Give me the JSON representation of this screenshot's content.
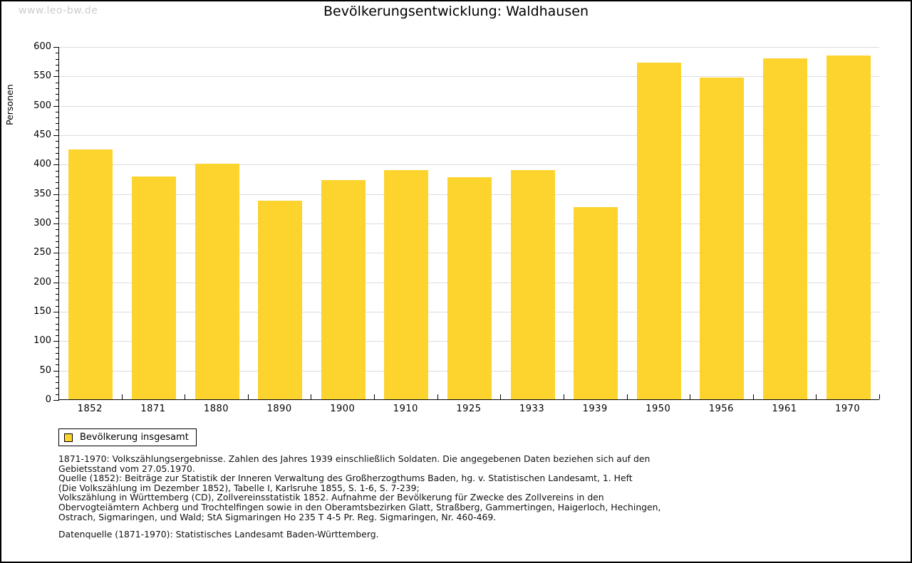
{
  "watermark": "www.leo-bw.de",
  "title": "Bevölkerungsentwicklung: Waldhausen",
  "chart_data": {
    "type": "bar",
    "title": "Bevölkerungsentwicklung: Waldhausen",
    "xlabel": "",
    "ylabel": "Personen",
    "categories": [
      "1852",
      "1871",
      "1880",
      "1890",
      "1900",
      "1910",
      "1925",
      "1933",
      "1939",
      "1950",
      "1956",
      "1961",
      "1970"
    ],
    "values": [
      425,
      379,
      400,
      338,
      372,
      390,
      378,
      390,
      327,
      572,
      547,
      580,
      584
    ],
    "ylim": [
      0,
      600
    ],
    "ytick_step": 50,
    "minor_tick_step": 10,
    "grid": true,
    "bar_color": "#fcd42d",
    "gridline_color": "#dcdcdc",
    "legend_position": "bottom-left"
  },
  "legend": {
    "label": "Bevölkerung insgesamt",
    "swatch_color": "#fcd42d"
  },
  "footnotes": {
    "lines": [
      "1871-1970: Volkszählungsergebnisse. Zahlen des Jahres 1939 einschließlich Soldaten. Die angegebenen Daten beziehen sich auf den",
      "Gebietsstand vom 27.05.1970.",
      "Quelle (1852): Beiträge zur Statistik der Inneren Verwaltung des Großherzogthums Baden, hg. v. Statistischen Landesamt, 1. Heft",
      "(Die Volkszählung im Dezember 1852), Tabelle I, Karlsruhe 1855, S. 1-6, S. 7-239;",
      "Volkszählung in Württemberg (CD), Zollvereinsstatistik 1852. Aufnahme der Bevölkerung für Zwecke des Zollvereins in den",
      "Obervogteiämtern Achberg und Trochtelfingen sowie in den Oberamtsbezirken Glatt, Straßberg, Gammertingen, Haigerloch, Hechingen,",
      "Ostrach, Sigmaringen, und Wald; StA Sigmaringen Ho 235 T 4-5 Pr. Reg. Sigmaringen, Nr. 460-469."
    ],
    "datasource": "Datenquelle (1871-1970): Statistisches Landesamt Baden-Württemberg."
  },
  "colors": {
    "bar": "#fcd42d",
    "gridline": "#dcdcdc",
    "axis": "#000000",
    "watermark": "#cccccc",
    "background": "#ffffff"
  }
}
